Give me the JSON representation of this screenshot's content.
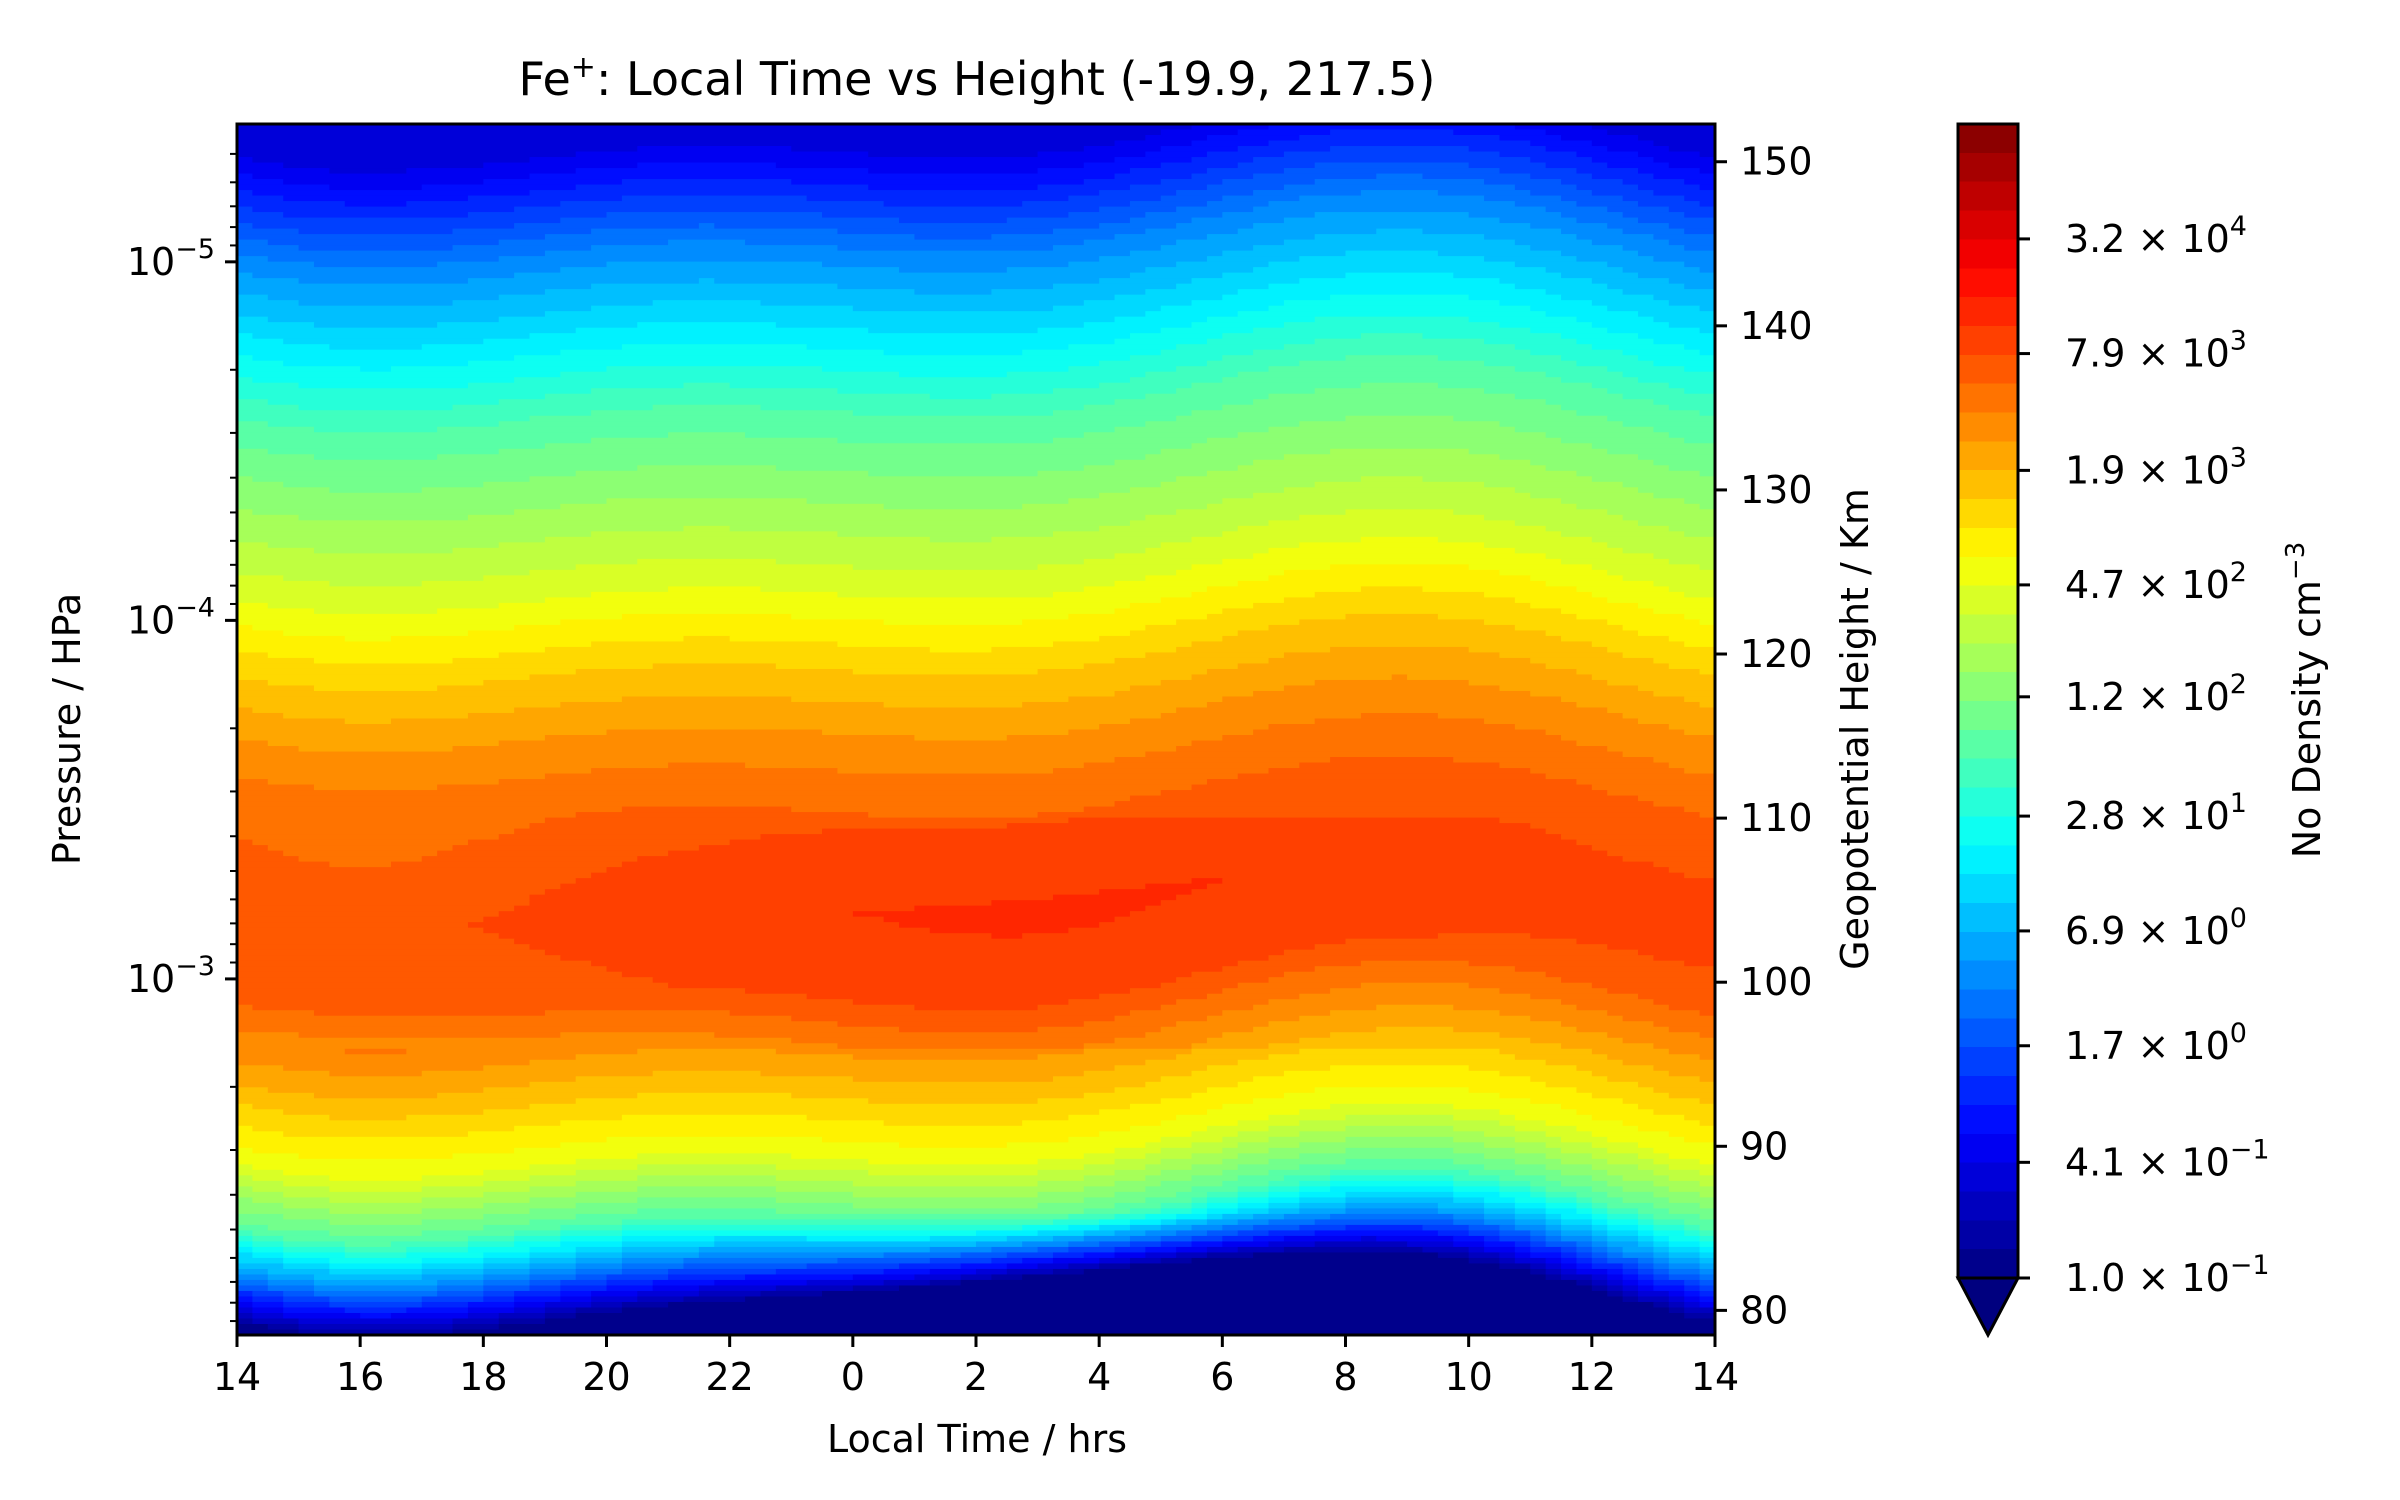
{
  "chart_data": {
    "type": "heatmap",
    "plot_kind": "filled contour (local time vs height)",
    "title_main": "Fe",
    "title_sup": "+",
    "title_rest": ": Local Time vs Height (-19.9, 217.5)",
    "xlabel": "Local Time / hrs",
    "ylabel_left": "Pressure / HPa",
    "ylabel_right": "Geopotential Height / Km",
    "colorbar_label": "No Density cm",
    "colorbar_label_sup": "−3",
    "x_tick_labels": [
      "14",
      "16",
      "18",
      "20",
      "22",
      "0",
      "2",
      "4",
      "6",
      "8",
      "10",
      "12",
      "14"
    ],
    "x_range_hours_from_start": [
      0,
      24
    ],
    "y_left_scale": "log",
    "y_left_ticks": [
      {
        "value": 1e-05,
        "base": "10",
        "exp": "−5"
      },
      {
        "value": 0.0001,
        "base": "10",
        "exp": "−4"
      },
      {
        "value": 0.001,
        "base": "10",
        "exp": "−3"
      }
    ],
    "y_right_ticks": [
      "80",
      "90",
      "100",
      "110",
      "120",
      "130",
      "140",
      "150"
    ],
    "y_right_range_km": [
      78.5,
      152.3
    ],
    "colorbar_ticks": [
      {
        "mant": "1.0",
        "exp": "−1"
      },
      {
        "mant": "4.1",
        "exp": "−1"
      },
      {
        "mant": "1.7",
        "exp": "0"
      },
      {
        "mant": "6.9",
        "exp": "0"
      },
      {
        "mant": "2.8",
        "exp": "1"
      },
      {
        "mant": "1.2",
        "exp": "2"
      },
      {
        "mant": "4.7",
        "exp": "2"
      },
      {
        "mant": "1.9",
        "exp": "3"
      },
      {
        "mant": "7.9",
        "exp": "3"
      },
      {
        "mant": "3.2",
        "exp": "4"
      }
    ],
    "colorbar_range": [
      0.1,
      130000
    ],
    "colorbar_extend": "min",
    "colormap": "jet",
    "approximate_log10_density_profile_vs_height_km": [
      {
        "height_km": 80,
        "log10_density": -1.0
      },
      {
        "height_km": 83,
        "log10_density": 0.5
      },
      {
        "height_km": 86,
        "log10_density": 1.8
      },
      {
        "height_km": 90,
        "log10_density": 2.7
      },
      {
        "height_km": 95,
        "log10_density": 3.3
      },
      {
        "height_km": 100,
        "log10_density": 3.85
      },
      {
        "height_km": 105,
        "log10_density": 3.95
      },
      {
        "height_km": 110,
        "log10_density": 3.8
      },
      {
        "height_km": 115,
        "log10_density": 3.5
      },
      {
        "height_km": 120,
        "log10_density": 3.1
      },
      {
        "height_km": 125,
        "log10_density": 2.6
      },
      {
        "height_km": 130,
        "log10_density": 2.2
      },
      {
        "height_km": 135,
        "log10_density": 1.8
      },
      {
        "height_km": 140,
        "log10_density": 1.2
      },
      {
        "height_km": 145,
        "log10_density": 0.6
      },
      {
        "height_km": 150,
        "log10_density": -0.2
      },
      {
        "height_km": 152,
        "log10_density": -0.5
      }
    ]
  }
}
